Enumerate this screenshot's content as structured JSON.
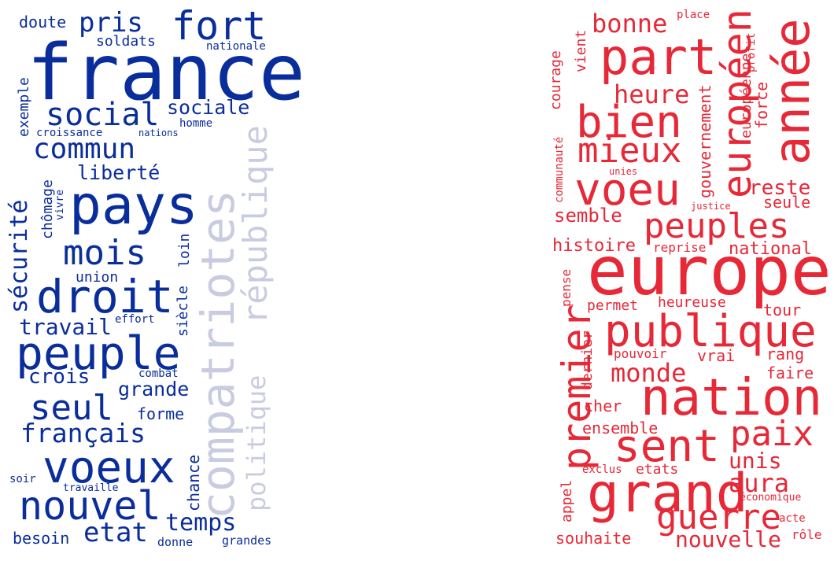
{
  "colors": {
    "left_primary": "#0a2d9c",
    "left_faded": "#c9cce0",
    "right_primary": "#e62837",
    "background": "#ffffff"
  },
  "left_cloud": {
    "words": [
      {
        "text": "france",
        "style": "primary"
      },
      {
        "text": "pays",
        "style": "primary"
      },
      {
        "text": "droit",
        "style": "primary"
      },
      {
        "text": "peuple",
        "style": "primary"
      },
      {
        "text": "voeux",
        "style": "primary"
      },
      {
        "text": "nouvel",
        "style": "primary"
      },
      {
        "text": "fort",
        "style": "primary"
      },
      {
        "text": "social",
        "style": "primary"
      },
      {
        "text": "commun",
        "style": "primary"
      },
      {
        "text": "mois",
        "style": "primary"
      },
      {
        "text": "seul",
        "style": "primary"
      },
      {
        "text": "pris",
        "style": "primary"
      },
      {
        "text": "sociale",
        "style": "primary"
      },
      {
        "text": "liberté",
        "style": "primary"
      },
      {
        "text": "français",
        "style": "primary"
      },
      {
        "text": "etat",
        "style": "primary"
      },
      {
        "text": "temps",
        "style": "primary"
      },
      {
        "text": "travail",
        "style": "primary"
      },
      {
        "text": "crois",
        "style": "primary"
      },
      {
        "text": "grande",
        "style": "primary"
      },
      {
        "text": "forme",
        "style": "primary"
      },
      {
        "text": "doute",
        "style": "primary"
      },
      {
        "text": "soldats",
        "style": "primary"
      },
      {
        "text": "nationale",
        "style": "primary"
      },
      {
        "text": "homme",
        "style": "primary"
      },
      {
        "text": "croissance",
        "style": "primary"
      },
      {
        "text": "nations",
        "style": "primary"
      },
      {
        "text": "union",
        "style": "primary"
      },
      {
        "text": "effort",
        "style": "primary"
      },
      {
        "text": "combat",
        "style": "primary"
      },
      {
        "text": "soir",
        "style": "primary"
      },
      {
        "text": "travaille",
        "style": "primary"
      },
      {
        "text": "besoin",
        "style": "primary"
      },
      {
        "text": "donne",
        "style": "primary"
      },
      {
        "text": "grandes",
        "style": "primary"
      },
      {
        "text": "exemple",
        "style": "primary"
      },
      {
        "text": "sécurité",
        "style": "primary"
      },
      {
        "text": "chômage",
        "style": "primary"
      },
      {
        "text": "vivre",
        "style": "primary"
      },
      {
        "text": "loin",
        "style": "primary"
      },
      {
        "text": "siècle",
        "style": "primary"
      },
      {
        "text": "chance",
        "style": "primary"
      },
      {
        "text": "compatriotes",
        "style": "faded"
      },
      {
        "text": "république",
        "style": "faded"
      },
      {
        "text": "politique",
        "style": "faded"
      }
    ]
  },
  "right_cloud": {
    "words": [
      {
        "text": "europe"
      },
      {
        "text": "année"
      },
      {
        "text": "part"
      },
      {
        "text": "bien"
      },
      {
        "text": "voeu"
      },
      {
        "text": "mieux"
      },
      {
        "text": "européen"
      },
      {
        "text": "peuples"
      },
      {
        "text": "publique"
      },
      {
        "text": "nation"
      },
      {
        "text": "premier"
      },
      {
        "text": "sent"
      },
      {
        "text": "paix"
      },
      {
        "text": "grand"
      },
      {
        "text": "guerre"
      },
      {
        "text": "nouvelle"
      },
      {
        "text": "bonne"
      },
      {
        "text": "place"
      },
      {
        "text": "heure"
      },
      {
        "text": "reste"
      },
      {
        "text": "seule"
      },
      {
        "text": "semble"
      },
      {
        "text": "histoire"
      },
      {
        "text": "reprise"
      },
      {
        "text": "national"
      },
      {
        "text": "permet"
      },
      {
        "text": "heureuse"
      },
      {
        "text": "tour"
      },
      {
        "text": "pouvoir"
      },
      {
        "text": "vrai"
      },
      {
        "text": "rang"
      },
      {
        "text": "monde"
      },
      {
        "text": "faire"
      },
      {
        "text": "cher"
      },
      {
        "text": "ensemble"
      },
      {
        "text": "unis"
      },
      {
        "text": "aura"
      },
      {
        "text": "exclus"
      },
      {
        "text": "etats"
      },
      {
        "text": "économique"
      },
      {
        "text": "acte"
      },
      {
        "text": "souhaite"
      },
      {
        "text": "rôle"
      },
      {
        "text": "unies"
      },
      {
        "text": "justice"
      },
      {
        "text": "courage"
      },
      {
        "text": "communauté"
      },
      {
        "text": "vient"
      },
      {
        "text": "gouvernement"
      },
      {
        "text": "force"
      },
      {
        "text": "profit"
      },
      {
        "text": "européenne"
      },
      {
        "text": "pense"
      },
      {
        "text": "dernier"
      },
      {
        "text": "appel"
      }
    ]
  }
}
